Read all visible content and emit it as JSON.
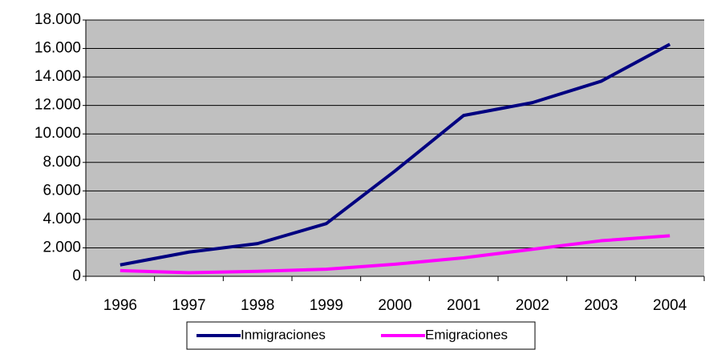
{
  "chart_data": {
    "type": "line",
    "categories": [
      "1996",
      "1997",
      "1998",
      "1999",
      "2000",
      "2001",
      "2002",
      "2003",
      "2004"
    ],
    "series": [
      {
        "name": "Inmigraciones",
        "color": "#000080",
        "values": [
          800,
          1700,
          2300,
          3700,
          7400,
          11300,
          12200,
          13700,
          16300
        ]
      },
      {
        "name": "Emigraciones",
        "color": "#ff00ff",
        "values": [
          400,
          250,
          350,
          500,
          850,
          1300,
          1900,
          2500,
          2850
        ]
      }
    ],
    "ylim": [
      0,
      18000
    ],
    "yticks": [
      0,
      {
        "value": 2000,
        "label": "2.000"
      },
      {
        "value": 4000,
        "label": "4.000"
      },
      {
        "value": 6000,
        "label": "6.000"
      },
      {
        "value": 8000,
        "label": "8.000"
      },
      {
        "value": 10000,
        "label": "10.000"
      },
      {
        "value": 12000,
        "label": "12.000"
      },
      {
        "value": 14000,
        "label": "14.000"
      },
      {
        "value": 16000,
        "label": "16.000"
      },
      {
        "value": 18000,
        "label": "18.000"
      }
    ],
    "grid": true,
    "legend": "bottom"
  }
}
